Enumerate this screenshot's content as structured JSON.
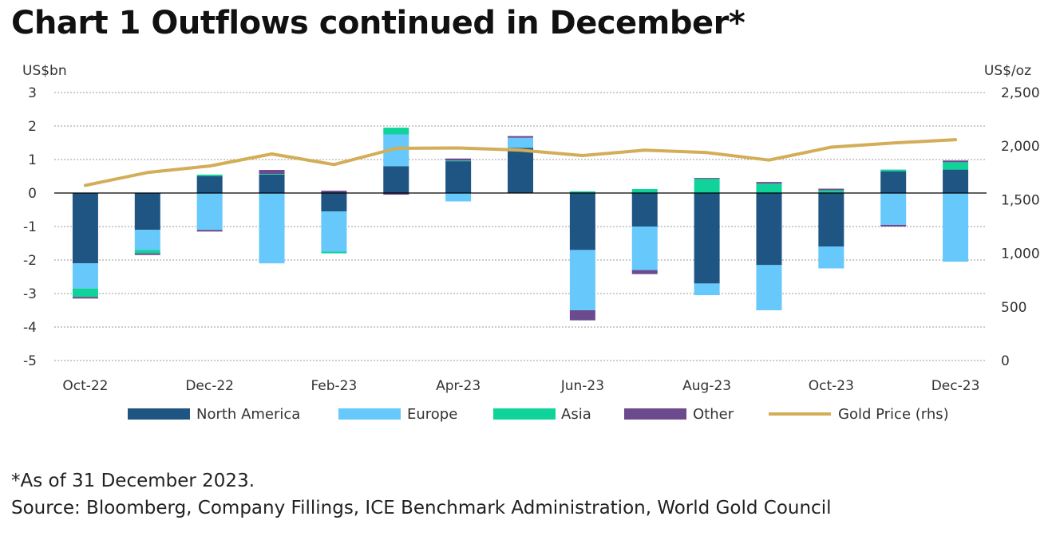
{
  "title": "Chart 1 Outflows continued in December*",
  "footnote": "*As of 31 December 2023.",
  "source": "Source: Bloomberg, Company Fillings, ICE Benchmark Administration, World Gold Council",
  "chart_data": {
    "type": "bar",
    "stacked": true,
    "categories": [
      "Oct-22",
      "Nov-22",
      "Dec-22",
      "Jan-23",
      "Feb-23",
      "Mar-23",
      "Apr-23",
      "May-23",
      "Jun-23",
      "Jul-23",
      "Aug-23",
      "Sep-23",
      "Oct-23",
      "Nov-23",
      "Dec-23"
    ],
    "x_tick_labels": [
      "Oct-22",
      "Dec-22",
      "Feb-23",
      "Apr-23",
      "Jun-23",
      "Aug-23",
      "Oct-23",
      "Dec-23"
    ],
    "ylabel_left": "US$bn",
    "ylabel_right": "US$/oz",
    "ylim_left": [
      -5,
      3
    ],
    "ylim_right": [
      0,
      2500
    ],
    "left_ticks": [
      "-5",
      "-4",
      "-3",
      "-2",
      "-1",
      "0",
      "1",
      "2",
      "3"
    ],
    "right_ticks": [
      "0",
      "500",
      "1,000",
      "1,500",
      "2,000",
      "2,500"
    ],
    "grid": true,
    "legend_position": "bottom",
    "series": [
      {
        "name": "North America",
        "color": "#1f5582",
        "values": [
          -2.1,
          -1.1,
          0.5,
          0.55,
          -0.55,
          0.8,
          0.95,
          1.35,
          -1.7,
          -1.0,
          -2.7,
          -2.15,
          -1.6,
          0.65,
          0.7
        ]
      },
      {
        "name": "Europe",
        "color": "#66c8fb",
        "values": [
          -0.75,
          -0.6,
          -1.1,
          -2.1,
          -1.2,
          0.95,
          -0.25,
          0.3,
          -1.8,
          -1.3,
          -0.35,
          -1.35,
          -0.65,
          -0.95,
          -2.05
        ]
      },
      {
        "name": "Asia",
        "color": "#0fd399",
        "values": [
          -0.25,
          -0.1,
          0.05,
          0.02,
          -0.05,
          0.2,
          0.02,
          0.0,
          0.05,
          0.12,
          0.42,
          0.28,
          0.08,
          0.05,
          0.22
        ]
      },
      {
        "name": "Other",
        "color": "#6c4a8e",
        "values": [
          -0.05,
          -0.05,
          -0.05,
          0.12,
          0.07,
          -0.05,
          0.06,
          0.05,
          -0.3,
          -0.12,
          0.03,
          0.05,
          0.05,
          -0.05,
          0.05
        ]
      }
    ],
    "line_series": {
      "name": "Gold Price (rhs)",
      "color": "#d3ad57",
      "values": [
        1634,
        1754,
        1815,
        1927,
        1828,
        1979,
        1983,
        1963,
        1912,
        1962,
        1940,
        1870,
        1990,
        2030,
        2060
      ]
    }
  }
}
